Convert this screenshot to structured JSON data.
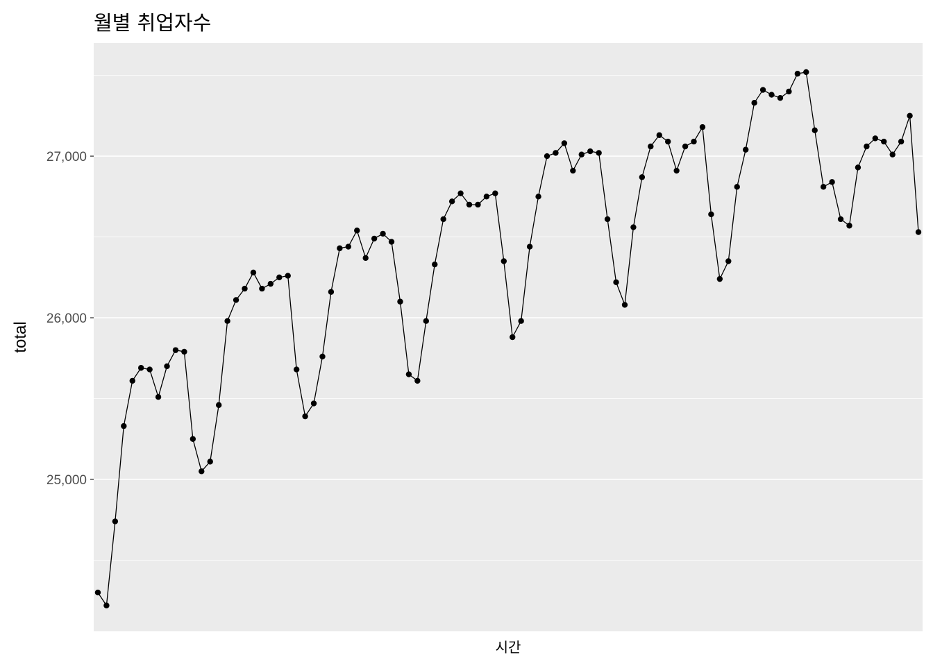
{
  "chart_data": {
    "type": "line",
    "title": "월별 취업자수",
    "xlabel": "시간",
    "ylabel": "total",
    "ylim": [
      24060,
      27700
    ],
    "y_ticks": [
      25000,
      26000,
      27000
    ],
    "y_tick_labels": [
      "25,000",
      "26,000",
      "27,000"
    ],
    "grid": true,
    "markers": true,
    "panel_background": "#ebebeb",
    "grid_color": "#ffffff",
    "line_color": "#000000",
    "series": [
      {
        "values": [
          24300,
          24220,
          24740,
          25330,
          25610,
          25690,
          25680,
          25510,
          25700,
          25800,
          25790,
          25250,
          25050,
          25110,
          25460,
          25980,
          26110,
          26180,
          26280,
          26180,
          26210,
          26250,
          26260,
          25680,
          25390,
          25470,
          25760,
          26160,
          26430,
          26440,
          26540,
          26370,
          26490,
          26520,
          26470,
          26100,
          25650,
          25610,
          25980,
          26330,
          26610,
          26720,
          26770,
          26700,
          26700,
          26750,
          26770,
          26350,
          25880,
          25980,
          26440,
          26750,
          27000,
          27020,
          27080,
          26910,
          27010,
          27030,
          27020,
          26610,
          26220,
          26080,
          26560,
          26870,
          27060,
          27130,
          27090,
          26910,
          27060,
          27090,
          27180,
          26640,
          26240,
          26350,
          26810,
          27040,
          27330,
          27410,
          27380,
          27360,
          27400,
          27510,
          27520,
          27160,
          26810,
          26840,
          26610,
          26570,
          26930,
          27060,
          27110,
          27090,
          27010,
          27090,
          27250,
          26530
        ]
      }
    ]
  }
}
